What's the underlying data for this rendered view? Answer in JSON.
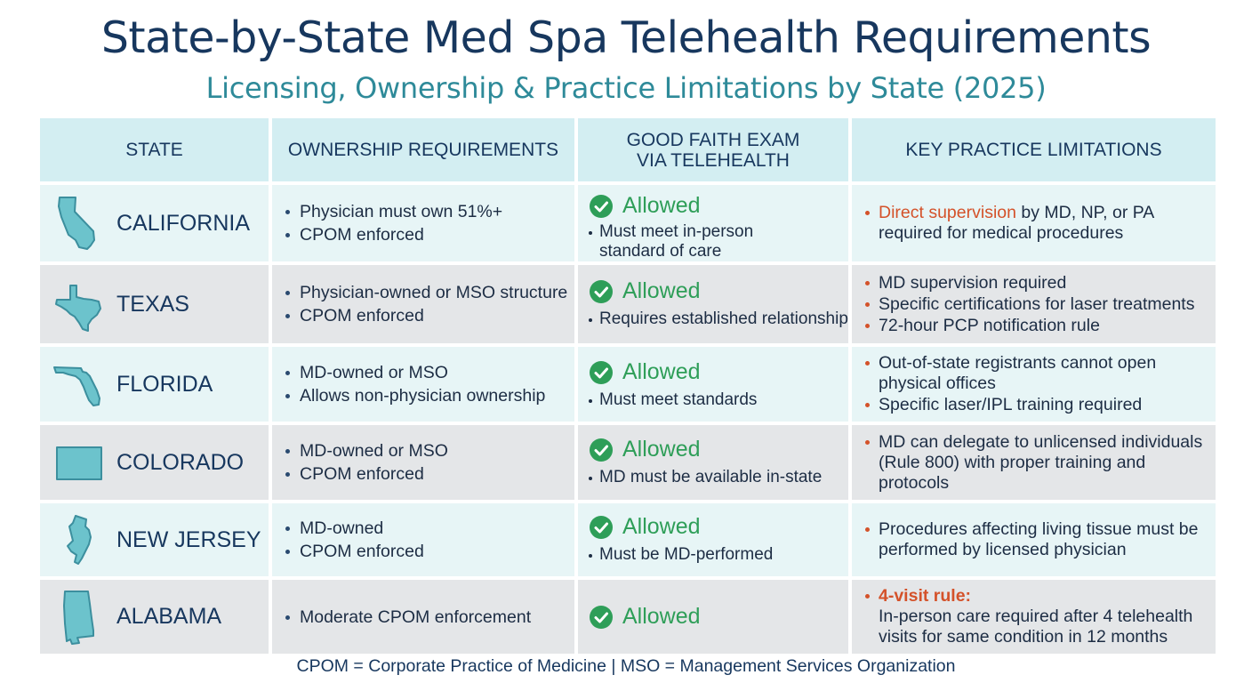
{
  "title": "State-by-State Med Spa Telehealth Requirements",
  "subtitle": "Licensing, Ownership & Practice Limitations by State (2025)",
  "headers": {
    "state": "STATE",
    "ownership": "OWNERSHIP REQUIREMENTS",
    "exam_line1": "GOOD FAITH EXAM",
    "exam_line2": "VIA TELEHEALTH",
    "limitations": "KEY PRACTICE LIMITATIONS"
  },
  "status_label": "Allowed",
  "colors": {
    "title": "#17375e",
    "subtitle": "#2e8a99",
    "header_bg": "#d3eef2",
    "row_light": "#e7f5f6",
    "row_gray": "#e4e6e8",
    "allowed_green": "#2e9e58",
    "highlight_orange": "#d4522a",
    "map_fill": "#6cc3cc"
  },
  "icons": [
    "california-map-icon",
    "texas-map-icon",
    "florida-map-icon",
    "colorado-map-icon",
    "new-jersey-map-icon",
    "alabama-map-icon",
    "check-circle-icon"
  ],
  "rows": [
    {
      "state": "CALIFORNIA",
      "ownership": [
        "Physician must own 51%+",
        "CPOM enforced"
      ],
      "exam_note_1": "Must meet in-person",
      "exam_note_2": "standard of care",
      "lim_1_highlight": "Direct supervision",
      "lim_1_rest": " by MD, NP, or PA",
      "lim_1_line2": "required for medical procedures"
    },
    {
      "state": "TEXAS",
      "ownership": [
        "Physician-owned or MSO structure",
        "CPOM enforced"
      ],
      "exam_note": "Requires established relationship",
      "limitations": [
        "MD supervision required",
        "Specific certifications for laser treatments",
        "72-hour PCP notification rule"
      ]
    },
    {
      "state": "FLORIDA",
      "ownership": [
        "MD-owned or MSO",
        "Allows non-physician ownership"
      ],
      "exam_note": "Must meet standards",
      "lim_1_line1": "Out-of-state registrants cannot open",
      "lim_1_line2": "physical offices",
      "lim_2": "Specific laser/IPL training required"
    },
    {
      "state": "COLORADO",
      "ownership": [
        "MD-owned or MSO",
        "CPOM enforced"
      ],
      "exam_note": "MD must be available in-state",
      "lim_line1": "MD can delegate to unlicensed individuals",
      "lim_line2": "(Rule 800) with proper training and",
      "lim_line3": "protocols"
    },
    {
      "state": "NEW JERSEY",
      "ownership": [
        "MD-owned",
        "CPOM enforced"
      ],
      "exam_note": "Must be MD-performed",
      "lim_line1": "Procedures affecting living tissue must be",
      "lim_line2": "performed by licensed physician"
    },
    {
      "state": "ALABAMA",
      "ownership": [
        "Moderate CPOM enforcement"
      ],
      "lim_highlight": "4-visit rule:",
      "lim_line2": "In-person care required after 4 telehealth",
      "lim_line3": "visits for same condition in 12 months"
    }
  ],
  "footer": "CPOM = Corporate Practice of Medicine | MSO = Management Services Organization"
}
